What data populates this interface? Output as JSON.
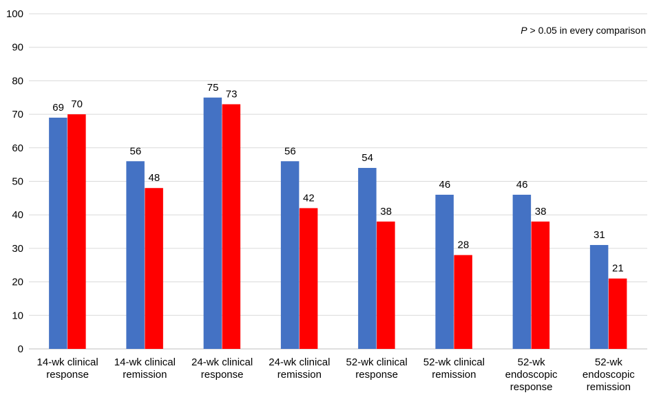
{
  "chart_data": {
    "type": "bar",
    "categories": [
      [
        "14-wk clinical",
        "response"
      ],
      [
        "14-wk clinical",
        "remission"
      ],
      [
        "24-wk clinical",
        "response"
      ],
      [
        "24-wk clinical",
        "remission"
      ],
      [
        "52-wk clinical",
        "response"
      ],
      [
        "52-wk clinical",
        "remission"
      ],
      [
        "52-wk",
        "endoscopic",
        "response"
      ],
      [
        "52-wk",
        "endoscopic",
        "remission"
      ]
    ],
    "series": [
      {
        "values": [
          69,
          56,
          75,
          56,
          54,
          46,
          46,
          31
        ],
        "color": "#4472C4"
      },
      {
        "values": [
          70,
          48,
          73,
          42,
          38,
          28,
          38,
          21
        ],
        "color": "#FF0000"
      }
    ],
    "ylim": [
      0,
      100
    ],
    "yticks": [
      0,
      10,
      20,
      30,
      40,
      50,
      60,
      70,
      80,
      90,
      100
    ],
    "grid": true,
    "legend": "none",
    "xlabel": "",
    "ylabel": "",
    "annotation": {
      "p_symbol": "P",
      "text": " > 0.05 in every comparison"
    }
  }
}
